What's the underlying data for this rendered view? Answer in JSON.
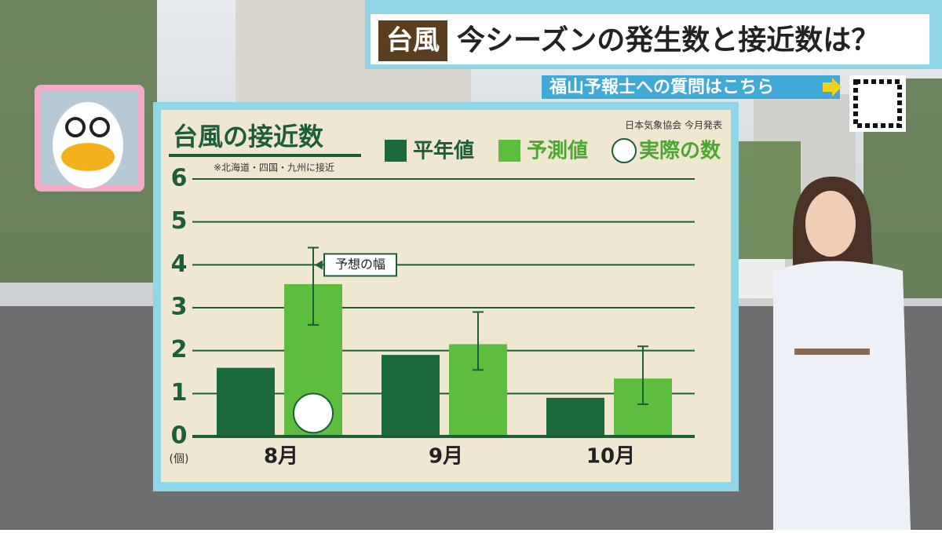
{
  "header": {
    "tag": "台風",
    "title": "今シーズンの発生数と接近数は？"
  },
  "banner": {
    "text": "福山予報士への質問はこちら"
  },
  "chart_data": {
    "type": "bar",
    "title": "台風の接近数",
    "subtitle": "※北海道・四国・九州に接近",
    "source": "日本気象協会 今月発表",
    "y_unit": "(個)",
    "annotation": "予想の幅",
    "categories": [
      "8月",
      "9月",
      "10月"
    ],
    "series": [
      {
        "name": "平年値",
        "color": "#1b6b3c",
        "values": [
          1.6,
          1.9,
          0.9
        ]
      },
      {
        "name": "予測値",
        "color": "#5cbd3e",
        "values": [
          3.55,
          2.15,
          1.35
        ],
        "low": [
          2.6,
          1.55,
          0.75
        ],
        "high": [
          4.4,
          2.9,
          2.1
        ]
      },
      {
        "name": "実際の数",
        "color": "#ffffff",
        "values": [
          1,
          null,
          null
        ]
      }
    ],
    "ylim": [
      0,
      6
    ],
    "yticks": [
      0,
      1,
      2,
      3,
      4,
      5,
      6
    ],
    "grid": true
  }
}
